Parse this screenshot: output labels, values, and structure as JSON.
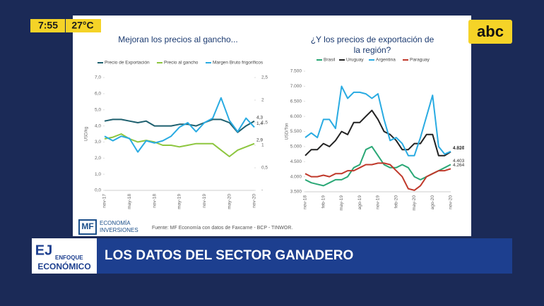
{
  "overlay": {
    "time": "7:55",
    "temperature": "27°C",
    "channel_logo": "abc",
    "show_name_top": "ENFOQUE",
    "show_name_bottom": "ECONÓMICO",
    "headline": "LOS DATOS DEL SECTOR GANADERO",
    "source": "Fuente: MF Economía con datos de Faxcarne - BCP - TINWOR.",
    "brand_mark": "MF",
    "brand_line1": "ECONOMÍA",
    "brand_line2": "INVERSIONES"
  },
  "chart_data": [
    {
      "type": "line",
      "title": "Mejoran los precios al gancho...",
      "y_label": "USD/kg",
      "categories": [
        "nov-17",
        null,
        null,
        "may-18",
        null,
        null,
        "nov-18",
        null,
        null,
        "may-19",
        null,
        null,
        "nov-19",
        null,
        null,
        "may-20",
        null,
        null,
        "nov-20"
      ],
      "ylim": [
        0,
        7
      ],
      "yticks": [
        {
          "value": 0,
          "label": "0,0"
        },
        {
          "value": 1,
          "label": "1,0"
        },
        {
          "value": 2,
          "label": "2,0"
        },
        {
          "value": 3,
          "label": "3,0"
        },
        {
          "value": 4,
          "label": "4,0"
        },
        {
          "value": 5,
          "label": "5,0"
        },
        {
          "value": 6,
          "label": "6,0"
        },
        {
          "value": 7,
          "label": "7,0"
        }
      ],
      "y2lim": [
        0,
        2.5
      ],
      "y2ticks": [
        {
          "value": 0,
          "label": "-"
        },
        {
          "value": 0.5,
          "label": "0,5"
        },
        1,
        {
          "value": 1.5,
          "label": "1,5"
        },
        2,
        {
          "value": 2.5,
          "label": "2,5"
        }
      ],
      "series": [
        {
          "name": "Precio de Exportación",
          "color": "#1d5f6e",
          "values": [
            4.3,
            4.4,
            4.4,
            4.3,
            4.2,
            4.3,
            4.0,
            4.0,
            4.0,
            4.1,
            4.1,
            4.0,
            4.2,
            4.4,
            4.4,
            4.2,
            3.6,
            4.0,
            4.3
          ],
          "value_labels": [
            null,
            null,
            null,
            null,
            null,
            null,
            null,
            null,
            null,
            null,
            null,
            null,
            null,
            null,
            null,
            null,
            null,
            null,
            "4,3"
          ]
        },
        {
          "name": "Precio al gancho",
          "color": "#8dc63f",
          "values": [
            3.2,
            3.3,
            3.5,
            3.2,
            3.0,
            3.1,
            3.0,
            2.8,
            2.8,
            2.7,
            2.8,
            2.9,
            2.9,
            2.9,
            2.5,
            2.1,
            2.5,
            2.7,
            2.9
          ],
          "value_labels": [
            null,
            null,
            null,
            null,
            null,
            null,
            null,
            null,
            null,
            null,
            null,
            null,
            null,
            null,
            null,
            null,
            null,
            null,
            "2,9"
          ]
        },
        {
          "name": "Margen Bruto frigoríficos",
          "color": "#29abe2",
          "axis": "y2",
          "values": [
            1.2,
            1.1,
            1.2,
            1.15,
            0.85,
            1.1,
            1.05,
            1.1,
            1.2,
            1.4,
            1.5,
            1.3,
            1.5,
            1.6,
            2.05,
            1.55,
            1.3,
            1.6,
            1.4
          ],
          "value_labels": [
            null,
            null,
            null,
            null,
            null,
            null,
            null,
            null,
            null,
            null,
            null,
            null,
            null,
            null,
            null,
            null,
            null,
            null,
            "1,4"
          ]
        }
      ]
    },
    {
      "type": "line",
      "title": "¿Y los precios de exportación de la región?",
      "y_label": "USD/Ton",
      "categories": [
        "nov-18",
        null,
        null,
        "feb-19",
        null,
        null,
        "may-19",
        null,
        null,
        "ago-19",
        null,
        null,
        "nov-19",
        null,
        null,
        "feb-20",
        null,
        null,
        "may-20",
        null,
        null,
        "ago-20",
        null,
        null,
        "nov-20"
      ],
      "ylim": [
        3500,
        7500
      ],
      "yticks": [
        {
          "value": 3500,
          "label": "3.500"
        },
        {
          "value": 4000,
          "label": "4.000"
        },
        {
          "value": 4500,
          "label": "4.500"
        },
        {
          "value": 5000,
          "label": "5.000"
        },
        {
          "value": 5500,
          "label": "5.500"
        },
        {
          "value": 6000,
          "label": "6.000"
        },
        {
          "value": 6500,
          "label": "6.500"
        },
        {
          "value": 7000,
          "label": "7.000"
        },
        {
          "value": 7500,
          "label": "7.500"
        }
      ],
      "series": [
        {
          "name": "Brasil",
          "color": "#2aa876",
          "values": [
            3900,
            3800,
            3750,
            3700,
            3800,
            3900,
            3900,
            4000,
            4300,
            4400,
            4900,
            5000,
            4700,
            4400,
            4300,
            4300,
            4400,
            4300,
            4000,
            3900,
            4000,
            4100,
            4200,
            4300,
            4403
          ],
          "value_labels": [
            null,
            null,
            null,
            null,
            null,
            null,
            null,
            null,
            null,
            null,
            null,
            null,
            null,
            null,
            null,
            null,
            null,
            null,
            null,
            null,
            null,
            null,
            null,
            null,
            "4.403"
          ]
        },
        {
          "name": "Uruguay",
          "color": "#222222",
          "values": [
            4700,
            4900,
            4900,
            5100,
            5000,
            5200,
            5500,
            5400,
            5800,
            5800,
            6000,
            6200,
            5900,
            5500,
            5400,
            5200,
            4900,
            4900,
            5100,
            5100,
            5400,
            5400,
            4700,
            4700,
            4826
          ],
          "value_labels": [
            null,
            null,
            null,
            null,
            null,
            null,
            null,
            null,
            null,
            null,
            null,
            null,
            null,
            null,
            null,
            null,
            null,
            null,
            null,
            null,
            null,
            null,
            null,
            null,
            "4.826"
          ]
        },
        {
          "name": "Argentina",
          "color": "#29abe2",
          "values": [
            5300,
            5450,
            5300,
            5900,
            5900,
            5600,
            7000,
            6600,
            6800,
            6800,
            6750,
            6600,
            6750,
            5900,
            5200,
            5300,
            5100,
            4700,
            4700,
            5300,
            6000,
            6700,
            5000,
            4750,
            4837
          ],
          "value_labels": [
            null,
            null,
            null,
            null,
            null,
            null,
            null,
            null,
            null,
            null,
            null,
            null,
            null,
            null,
            null,
            null,
            null,
            null,
            null,
            null,
            null,
            null,
            null,
            null,
            "4.837"
          ]
        },
        {
          "name": "Paraguay",
          "color": "#c0392b",
          "values": [
            4100,
            4000,
            4000,
            4050,
            4000,
            4100,
            4100,
            4200,
            4200,
            4300,
            4400,
            4400,
            4450,
            4450,
            4400,
            4200,
            4000,
            3600,
            3550,
            3700,
            4000,
            4100,
            4200,
            4200,
            4264
          ],
          "value_labels": [
            null,
            null,
            null,
            null,
            null,
            null,
            null,
            null,
            null,
            null,
            null,
            null,
            null,
            null,
            null,
            null,
            null,
            null,
            null,
            null,
            null,
            null,
            null,
            null,
            "4.264"
          ]
        }
      ]
    }
  ]
}
